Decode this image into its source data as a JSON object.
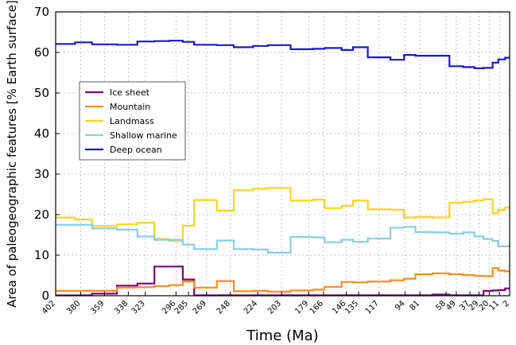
{
  "chart_data": {
    "type": "line",
    "step": true,
    "xlabel": "Time (Ma)",
    "ylabel": "Area of paleogeographic features [% Earth surface]",
    "ylim": [
      0,
      70
    ],
    "yticks": [
      0,
      10,
      20,
      30,
      40,
      50,
      60,
      70
    ],
    "xlim": [
      402,
      2
    ],
    "xticks": [
      402,
      380,
      359,
      338,
      323,
      296,
      285,
      269,
      248,
      224,
      203,
      179,
      166,
      146,
      135,
      117,
      94,
      81,
      58,
      49,
      37,
      29,
      20,
      11,
      2
    ],
    "grid": true,
    "legend": {
      "placement": "center-left"
    },
    "edges": [
      402,
      385,
      370,
      348,
      330,
      315,
      302,
      290,
      280,
      260,
      245,
      228,
      215,
      195,
      175,
      165,
      150,
      140,
      127,
      107,
      95,
      85,
      70,
      55,
      43,
      33,
      25,
      17,
      12,
      6,
      2
    ],
    "series": [
      {
        "name": "Ice sheet",
        "color": "#800080",
        "values": [
          0.1,
          0.1,
          0.5,
          2.5,
          3.0,
          7.2,
          7.2,
          4.0,
          0.1,
          0.1,
          0.1,
          0.1,
          0.1,
          0.1,
          0.1,
          0.1,
          0.1,
          0.1,
          0.1,
          0.1,
          0.1,
          0.1,
          0.3,
          0.1,
          0.1,
          0.1,
          1.2,
          1.3,
          1.4,
          1.8
        ]
      },
      {
        "name": "Mountain",
        "color": "#ff8c1a",
        "values": [
          1.2,
          1.2,
          1.2,
          2.0,
          2.1,
          2.4,
          2.6,
          3.5,
          2.0,
          3.6,
          1.1,
          1.2,
          1.0,
          1.3,
          1.5,
          2.2,
          3.4,
          3.3,
          3.5,
          3.8,
          4.2,
          5.3,
          5.5,
          5.3,
          5.1,
          4.9,
          4.8,
          6.8,
          6.2,
          6.0
        ]
      },
      {
        "name": "Landmass",
        "color": "#ffd21a",
        "values": [
          19.3,
          18.8,
          17.2,
          17.6,
          18.0,
          14.0,
          13.5,
          17.3,
          23.6,
          21.0,
          26.0,
          26.4,
          26.6,
          23.5,
          23.7,
          21.6,
          22.2,
          23.5,
          21.3,
          21.2,
          19.3,
          19.4,
          19.3,
          22.9,
          23.2,
          23.5,
          23.8,
          20.4,
          21.2,
          21.8
        ]
      },
      {
        "name": "Shallow marine",
        "color": "#87ceeb",
        "values": [
          17.5,
          17.5,
          16.6,
          16.3,
          14.6,
          13.8,
          13.8,
          12.6,
          11.5,
          13.6,
          11.5,
          11.4,
          10.6,
          14.5,
          14.4,
          13.2,
          13.8,
          13.3,
          14.1,
          16.8,
          17.0,
          15.7,
          15.6,
          15.3,
          15.6,
          14.6,
          14.0,
          13.5,
          12.2,
          12.2
        ]
      },
      {
        "name": "Deep ocean",
        "color": "#1a1acc",
        "values": [
          62.1,
          62.5,
          62.0,
          61.9,
          62.7,
          62.8,
          62.9,
          62.6,
          61.9,
          61.8,
          61.3,
          61.6,
          61.8,
          60.8,
          60.9,
          61.1,
          60.6,
          61.3,
          58.8,
          58.2,
          59.4,
          59.2,
          59.2,
          56.6,
          56.4,
          56.1,
          56.2,
          57.5,
          58.3,
          58.7
        ]
      }
    ]
  }
}
